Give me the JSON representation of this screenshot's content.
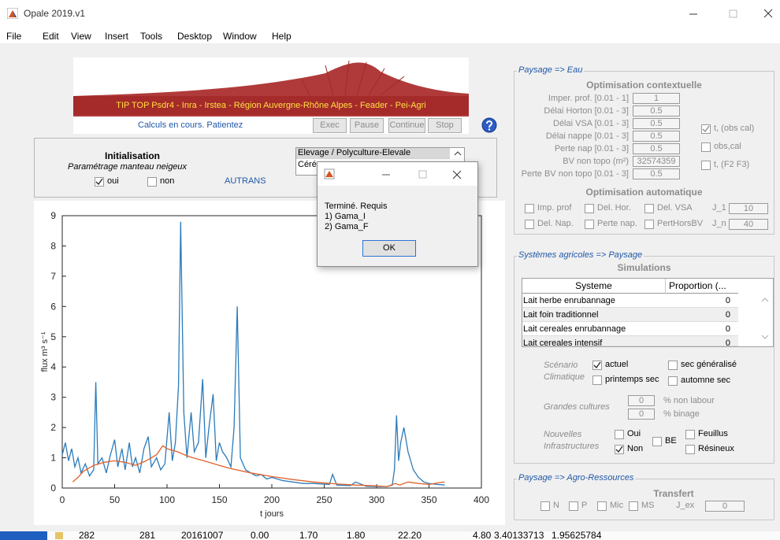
{
  "window": {
    "title": "Opale 2019.v1"
  },
  "menu": [
    "File",
    "Edit",
    "View",
    "Insert",
    "Tools",
    "Desktop",
    "Window",
    "Help"
  ],
  "banner": {
    "text": "TIP TOP Psdr4 - Inra - Irstea - Région Auvergne-Rhône Alpes - Feader - Pei-Agri"
  },
  "status": "Calculs en cours. Patientez",
  "buttons": [
    "Exec",
    "Pause",
    "Continue",
    "Stop"
  ],
  "init": {
    "title": "Initialisation",
    "subtitle": "Paramétrage manteau neigeux",
    "options": [
      {
        "label": "oui",
        "checked": true
      },
      {
        "label": "non",
        "checked": false
      }
    ],
    "site": "AUTRANS",
    "list": [
      "Elevage / Polyculture-Elevale",
      "Céré"
    ]
  },
  "dialog": {
    "lines": [
      "Terminé. Requis",
      "1) Gama_I",
      "2) Gama_F"
    ],
    "button": "OK"
  },
  "chart_data": {
    "type": "line",
    "xlabel": "t jours",
    "ylabel": "flux m³ s⁻¹",
    "xlim": [
      0,
      400
    ],
    "xticks": [
      0,
      50,
      100,
      150,
      200,
      250,
      300,
      350,
      400
    ],
    "ylim": [
      0,
      9
    ],
    "yticks": [
      0,
      1,
      2,
      3,
      4,
      5,
      6,
      7,
      8,
      9
    ],
    "series": [
      {
        "color": "#2b7bba",
        "x": [
          0,
          3,
          6,
          9,
          12,
          15,
          18,
          22,
          26,
          30,
          32,
          34,
          38,
          42,
          46,
          50,
          53,
          57,
          60,
          64,
          67,
          70,
          74,
          78,
          82,
          85,
          90,
          94,
          98,
          102,
          105,
          108,
          111,
          113,
          116,
          119,
          123,
          126,
          130,
          134,
          137,
          140,
          144,
          147,
          150,
          153,
          157,
          161,
          164,
          167,
          170,
          175,
          180,
          185,
          190,
          195,
          200,
          210,
          220,
          230,
          240,
          255,
          258,
          262,
          275,
          280,
          290,
          300,
          310,
          315,
          317,
          319,
          321,
          323,
          326,
          330,
          335,
          340,
          345,
          350,
          358,
          365
        ],
        "values": [
          1.1,
          1.5,
          0.9,
          1.3,
          0.7,
          1.0,
          0.5,
          0.8,
          0.4,
          0.6,
          3.5,
          0.8,
          1.0,
          0.5,
          1.1,
          1.6,
          0.7,
          1.3,
          0.6,
          1.5,
          0.7,
          1.0,
          0.5,
          1.3,
          1.7,
          0.7,
          1.0,
          0.6,
          0.8,
          2.5,
          0.9,
          1.5,
          3.4,
          8.8,
          2.5,
          1.0,
          2.5,
          1.2,
          1.5,
          3.6,
          1.0,
          2.0,
          3.1,
          0.9,
          1.5,
          1.2,
          1.0,
          0.7,
          2.0,
          6.0,
          1.0,
          0.6,
          0.5,
          0.4,
          0.45,
          0.3,
          0.35,
          0.25,
          0.2,
          0.15,
          0.15,
          0.12,
          0.45,
          0.1,
          0.08,
          0.2,
          0.06,
          0.05,
          0.05,
          0.1,
          0.6,
          2.4,
          0.9,
          1.5,
          2.0,
          1.2,
          0.6,
          0.35,
          0.2,
          0.15,
          0.12,
          0.1
        ]
      },
      {
        "color": "#e0622a",
        "x": [
          10,
          15,
          20,
          30,
          40,
          50,
          60,
          70,
          80,
          90,
          96,
          100,
          110,
          120,
          130,
          140,
          150,
          160,
          180,
          200,
          220,
          240,
          260,
          280,
          300,
          310,
          318,
          322,
          330,
          340,
          350,
          360,
          365
        ],
        "values": [
          0.2,
          0.35,
          0.55,
          0.75,
          0.85,
          0.9,
          0.85,
          0.75,
          0.9,
          1.1,
          1.4,
          1.3,
          1.2,
          1.05,
          0.95,
          0.85,
          0.75,
          0.65,
          0.5,
          0.38,
          0.28,
          0.2,
          0.14,
          0.1,
          0.07,
          0.05,
          0.15,
          0.1,
          0.2,
          0.15,
          0.12,
          0.18,
          0.2
        ]
      }
    ]
  },
  "eau": {
    "legend": "Paysage => Eau",
    "section1": "Optimisation contextuelle",
    "fields": [
      {
        "label": "Imper. prof. [0.01 - 1]",
        "value": "1"
      },
      {
        "label": "Délai Horton [0.01 - 3]",
        "value": "0.5"
      },
      {
        "label": "Délai VSA [0.01 - 3]",
        "value": "0.5"
      },
      {
        "label": "Délai nappe [0.01 - 3]",
        "value": "0.5"
      },
      {
        "label": "Perte nap [0.01 - 3]",
        "value": "0.5"
      },
      {
        "label": "BV non topo (m²)",
        "value": "32574359"
      },
      {
        "label": "Perte BV non topo [0.01 - 3]",
        "value": "0.5"
      }
    ],
    "outputs": [
      {
        "label": "t, (obs cal)",
        "checked": true
      },
      {
        "label": "obs,cal",
        "checked": false
      },
      {
        "label": "t, (F2 F3)",
        "checked": false
      }
    ],
    "section2": "Optimisation automatique",
    "auto": [
      {
        "label": "Imp. prof",
        "checked": false
      },
      {
        "label": "Del. Hor.",
        "checked": false
      },
      {
        "label": "Del. VSA",
        "checked": false
      },
      {
        "label": "Del. Nap.",
        "checked": false
      },
      {
        "label": "Perte nap.",
        "checked": false
      },
      {
        "label": "PertHorsBV",
        "checked": false
      }
    ],
    "j1": {
      "label": "J_1",
      "value": "10"
    },
    "jn": {
      "label": "J_n",
      "value": "40"
    }
  },
  "systemes": {
    "legend": "Systèmes agricoles => Paysage",
    "section": "Simulations",
    "columns": [
      "Systeme",
      "Proportion (..."
    ],
    "rows": [
      [
        "Lait herbe enrubannage",
        "0"
      ],
      [
        "Lait foin traditionnel",
        "0"
      ],
      [
        "Lait cereales enrubannage",
        "0"
      ],
      [
        "Lait cereales intensif",
        "0"
      ]
    ],
    "scenario": {
      "label": [
        "Scénario",
        "Climatique"
      ],
      "options": [
        {
          "label": "actuel",
          "checked": true
        },
        {
          "label": "sec généralisé",
          "checked": false
        },
        {
          "label": "printemps sec",
          "checked": false
        },
        {
          "label": "automne sec",
          "checked": false
        }
      ]
    },
    "cultures": {
      "label": "Grandes cultures",
      "fields": [
        {
          "value": "0",
          "unit": "% non labour"
        },
        {
          "value": "0",
          "unit": "% binage"
        }
      ]
    },
    "infra": {
      "label": [
        "Nouvelles",
        "Infrastructures"
      ],
      "options": [
        {
          "label": "Oui",
          "checked": false
        },
        {
          "label": "Non",
          "checked": true
        },
        {
          "label": "BE",
          "checked": false
        },
        {
          "label": "Feuillus",
          "checked": false
        },
        {
          "label": "Résineux",
          "checked": false
        }
      ]
    }
  },
  "agro": {
    "legend": "Paysage => Agro-Ressources",
    "section": "Transfert",
    "options": [
      {
        "label": "N",
        "checked": false
      },
      {
        "label": "P",
        "checked": false
      },
      {
        "label": "Mic",
        "checked": false
      },
      {
        "label": "MS",
        "checked": false
      }
    ],
    "jex": {
      "label": "J_ex",
      "value": "0"
    }
  },
  "status_row": [
    "282",
    "281",
    "20161007",
    "0.00",
    "1.70",
    "1.80",
    "22.20",
    "4.80",
    "3.40133713",
    "1.95625784"
  ]
}
